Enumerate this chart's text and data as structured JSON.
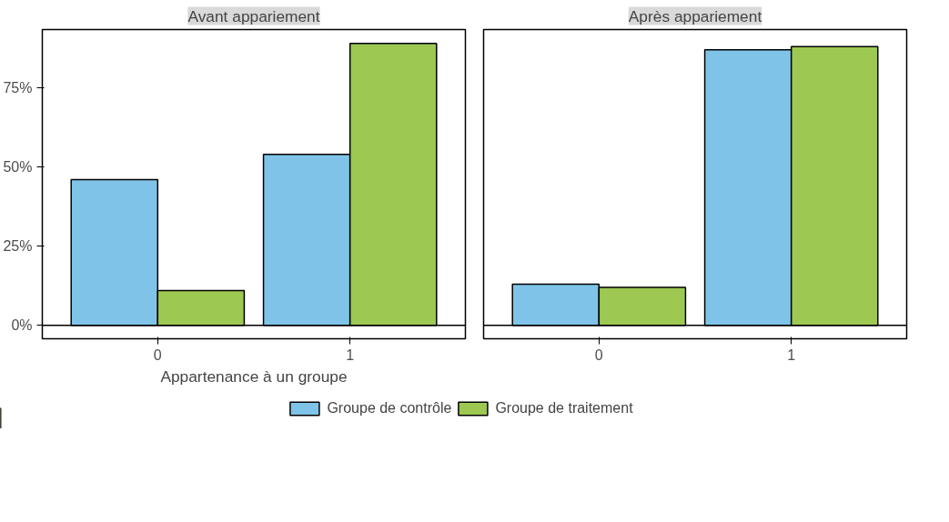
{
  "chart_data": [
    {
      "type": "bar",
      "title": "Avant appariement",
      "xlabel": "Appartenance à un groupe",
      "categories": [
        "0",
        "1"
      ],
      "series": [
        {
          "name": "Groupe de contrôle",
          "color": "#7fc4e8",
          "values": [
            46,
            54
          ]
        },
        {
          "name": "Groupe de traitement",
          "color": "#9dc852",
          "values": [
            11,
            89
          ]
        }
      ],
      "ylim": [
        -4.2,
        93.4
      ],
      "yticks": [
        {
          "value": 0,
          "label": "0%"
        },
        {
          "value": 25,
          "label": "25%"
        },
        {
          "value": 50,
          "label": "50%"
        },
        {
          "value": 75,
          "label": "75%"
        }
      ],
      "ref_lines": [
        {
          "axis": "y",
          "value": 0
        }
      ],
      "grid": false,
      "legend": "bottom"
    },
    {
      "type": "bar",
      "title": "Après appariement",
      "categories": [
        "0",
        "1"
      ],
      "series": [
        {
          "color": "#7fc4e8",
          "values": [
            13,
            87
          ]
        },
        {
          "color": "#9dc852",
          "values": [
            12,
            88
          ]
        }
      ],
      "ylim": [
        -4.2,
        93.4
      ],
      "ref_lines": [
        {
          "axis": "y",
          "value": 0
        }
      ],
      "grid": false,
      "tick_labels": "x"
    }
  ]
}
